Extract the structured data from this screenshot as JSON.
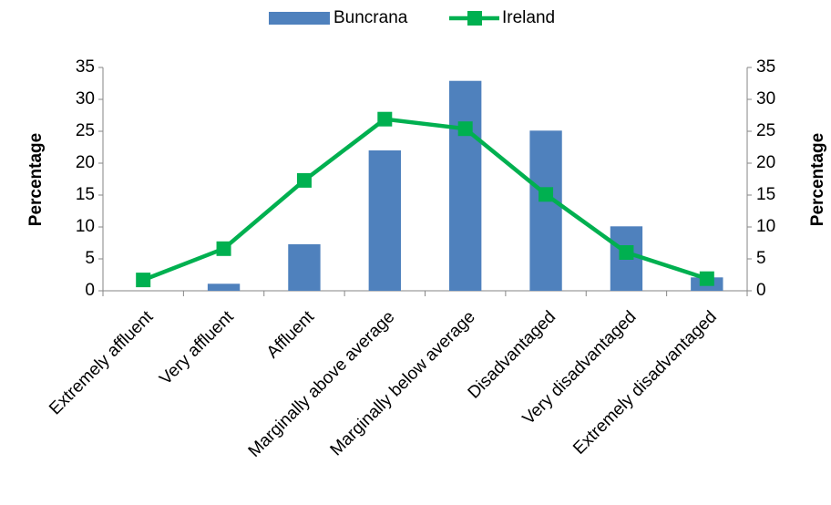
{
  "chart_data": {
    "type": "bar",
    "categories": [
      "Extremely affluent",
      "Very affluent",
      "Affluent",
      "Marginally above average",
      "Marginally below average",
      "Disadvantaged",
      "Very disadvantaged",
      "Extremely disadvantaged"
    ],
    "series": [
      {
        "name": "Buncrana",
        "kind": "bar",
        "color": "#4f81bd",
        "values": [
          0,
          1.1,
          7.3,
          22,
          32.9,
          25.1,
          10.1,
          2.1
        ]
      },
      {
        "name": "Ireland",
        "kind": "line",
        "axis": "y2",
        "color": "#00b050",
        "values": [
          1.7,
          6.6,
          17.3,
          26.9,
          25.4,
          15.1,
          6,
          1.9
        ]
      }
    ],
    "ylabel": "Percentage",
    "y2label": "Percentage",
    "ylim": [
      0,
      35
    ],
    "yticks": [
      0,
      5,
      10,
      15,
      20,
      25,
      30,
      35
    ],
    "y2lim": [
      0,
      35
    ],
    "y2ticks": [
      0,
      5,
      10,
      15,
      20,
      25,
      30,
      35
    ],
    "legend": "top",
    "grid": false
  }
}
